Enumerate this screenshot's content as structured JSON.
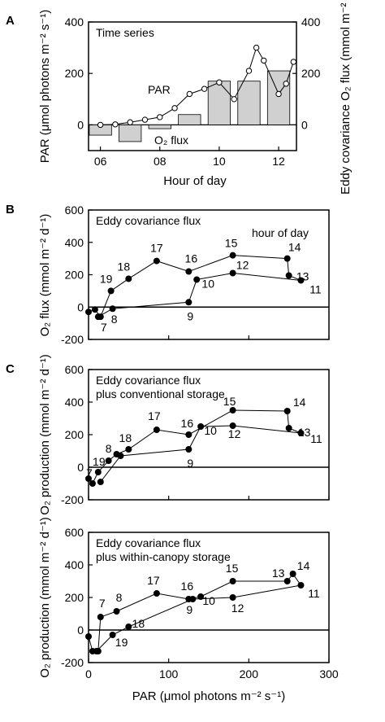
{
  "figure": {
    "ylabel_b": "O₂ flux (mmol m⁻² d⁻¹)",
    "ylabel_cd": "O₂ production (mmol m⁻² d⁻¹)",
    "xlabel_bottom": "PAR (μmol photons m⁻² s⁻¹)"
  },
  "chart_data": [
    {
      "panel": "A",
      "type": "bar+line",
      "title": "Time series",
      "xlabel": "Hour of day",
      "xlim": [
        5.6,
        12.6
      ],
      "xticks": [
        6,
        8,
        10,
        12
      ],
      "xtick_labels": [
        "06",
        "08",
        "10",
        "12"
      ],
      "ylim_left": [
        -100,
        400
      ],
      "yticks_left": [
        0,
        200,
        400
      ],
      "ylabel_left": "PAR (μmol photons m⁻² s⁻¹)",
      "ylim_right": [
        -100,
        400
      ],
      "yticks_right": [
        0,
        200,
        400
      ],
      "ylabel_right": "Eddy covariance O₂ flux (mmol m⁻² d⁻¹)",
      "series": [
        {
          "name": "O₂ flux",
          "type": "bar",
          "color": "#d0d0d0",
          "x": [
            6,
            7,
            8,
            9,
            10,
            11,
            12
          ],
          "values": [
            -40,
            -65,
            -15,
            40,
            170,
            170,
            210
          ]
        },
        {
          "name": "PAR",
          "type": "line",
          "marker": "open-circle",
          "x": [
            6,
            6.5,
            7,
            7.5,
            8,
            8.5,
            9,
            9.5,
            10,
            10.5,
            11,
            11.25,
            11.5,
            12,
            12.25,
            12.5
          ],
          "values": [
            0,
            2,
            10,
            20,
            30,
            65,
            120,
            140,
            165,
            100,
            210,
            300,
            250,
            120,
            160,
            245
          ]
        }
      ]
    },
    {
      "panel": "B",
      "type": "line",
      "title": "Eddy covariance flux",
      "annotation": "hour of day",
      "xlim": [
        0,
        300
      ],
      "ylim": [
        -200,
        600
      ],
      "yticks": [
        -200,
        0,
        200,
        400,
        600
      ],
      "series": [
        {
          "name": "",
          "x": [
            0,
            8,
            15,
            28,
            50,
            85,
            125,
            180,
            248,
            250,
            265,
            180,
            135,
            125,
            30,
            12
          ],
          "y": [
            -30,
            -15,
            -60,
            100,
            175,
            285,
            220,
            320,
            300,
            195,
            165,
            210,
            170,
            30,
            -10,
            -60
          ],
          "labels": [
            "",
            "",
            "7",
            "19",
            "18",
            "17",
            "16",
            "15",
            "14",
            "13",
            "11",
            "12",
            "10",
            "9",
            "8",
            ""
          ]
        }
      ]
    },
    {
      "panel": "C",
      "type": "line",
      "title": "Eddy covariance flux plus conventional storage",
      "xlim": [
        0,
        300
      ],
      "ylim": [
        -200,
        600
      ],
      "yticks": [
        -200,
        0,
        200,
        400,
        600
      ],
      "series": [
        {
          "name": "",
          "x": [
            0,
            5,
            12,
            25,
            35,
            50,
            85,
            125,
            180,
            248,
            250,
            265,
            180,
            140,
            125,
            40,
            15
          ],
          "y": [
            -70,
            -100,
            -30,
            40,
            80,
            110,
            230,
            200,
            350,
            345,
            240,
            210,
            255,
            250,
            110,
            70,
            -90
          ],
          "labels": [
            "",
            "7",
            "19",
            "8",
            "",
            "18",
            "17",
            "16",
            "15",
            "14",
            "13",
            "11",
            "12",
            "10",
            "9",
            "",
            ""
          ]
        }
      ]
    },
    {
      "panel": "D",
      "type": "line",
      "title": "Eddy covariance flux plus within-canopy storage",
      "xlim": [
        0,
        300
      ],
      "ylim": [
        -200,
        600
      ],
      "yticks": [
        -200,
        0,
        200,
        400,
        600
      ],
      "xticks": [
        0,
        100,
        200,
        300
      ],
      "series": [
        {
          "name": "",
          "x": [
            0,
            5,
            12,
            15,
            35,
            85,
            125,
            140,
            180,
            248,
            255,
            265,
            180,
            130,
            50,
            30,
            10
          ],
          "y": [
            -40,
            -130,
            -130,
            80,
            115,
            225,
            190,
            205,
            300,
            300,
            345,
            275,
            200,
            190,
            20,
            -30,
            -130
          ],
          "labels": [
            "",
            "",
            "",
            "7",
            "8",
            "17",
            "16",
            "10",
            "15",
            "13",
            "14",
            "11",
            "12",
            "9",
            "18",
            "19",
            ""
          ]
        }
      ]
    }
  ]
}
